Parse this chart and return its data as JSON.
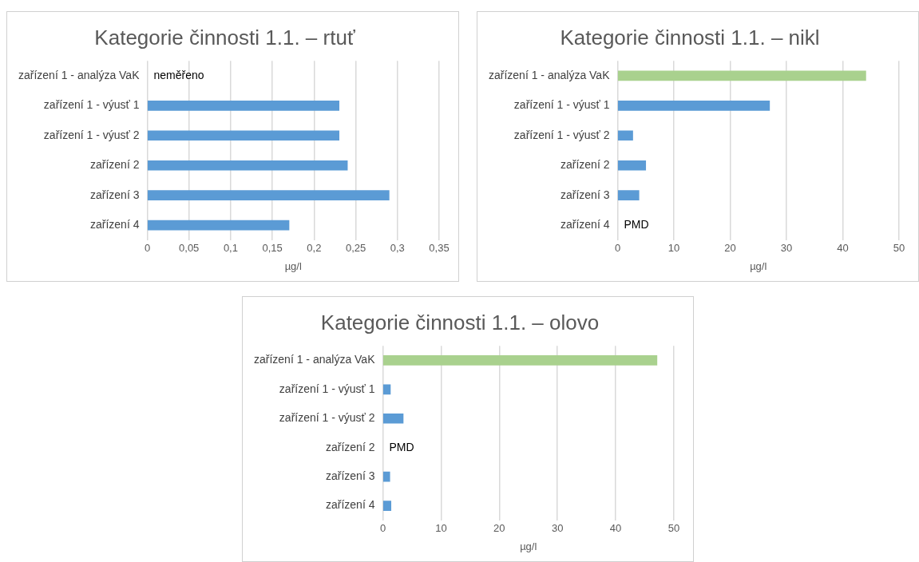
{
  "chart_data": [
    {
      "type": "bar",
      "orientation": "horizontal",
      "title": "Kategorie činnosti 1.1. – rtuť",
      "xlabel": "µg/l",
      "categories": [
        "zařízení 1 - analýza VaK",
        "zařízení 1 - výusť 1",
        "zařízení 1 - výusť 2",
        "zařízení 2",
        "zařízení 3",
        "zařízení 4"
      ],
      "values": [
        null,
        0.23,
        0.23,
        0.24,
        0.29,
        0.17
      ],
      "colors": [
        "#5b9bd5",
        "#5b9bd5",
        "#5b9bd5",
        "#5b9bd5",
        "#5b9bd5",
        "#5b9bd5"
      ],
      "xlim": [
        0,
        0.35
      ],
      "xticks": [
        0,
        {
          "value": 0.05,
          "label": "0,05"
        },
        {
          "value": 0.1,
          "label": "0,1"
        },
        {
          "value": 0.15,
          "label": "0,15"
        },
        {
          "value": 0.2,
          "label": "0,2"
        },
        {
          "value": 0.25,
          "label": "0,25"
        },
        {
          "value": 0.3,
          "label": "0,3"
        },
        {
          "value": 0.35,
          "label": "0,35"
        }
      ],
      "grid": "x",
      "value_labels": [
        "neměřeno",
        null,
        null,
        null,
        null,
        null
      ]
    },
    {
      "type": "bar",
      "orientation": "horizontal",
      "title": "Kategorie činnosti 1.1. – nikl",
      "xlabel": "µg/l",
      "categories": [
        "zařízení 1 - analýza VaK",
        "zařízení 1 - výusť 1",
        "zařízení 1 - výusť 2",
        "zařízení 2",
        "zařízení 3",
        "zařízení 4"
      ],
      "values": [
        44.1,
        27,
        2.7,
        5,
        3.8,
        null
      ],
      "colors": [
        "#a9d18e",
        "#5b9bd5",
        "#5b9bd5",
        "#5b9bd5",
        "#5b9bd5",
        "#5b9bd5"
      ],
      "xlim": [
        0,
        50
      ],
      "xticks": [
        0,
        10,
        20,
        30,
        40,
        50
      ],
      "grid": "x",
      "value_labels": [
        null,
        null,
        null,
        null,
        null,
        "PMD"
      ]
    },
    {
      "type": "bar",
      "orientation": "horizontal",
      "title": "Kategorie činnosti 1.1. – olovo",
      "xlabel": "µg/l",
      "categories": [
        "zařízení 1 - analýza VaK",
        "zařízení 1 - výusť 1",
        "zařízení 1 - výusť 2",
        "zařízení 2",
        "zařízení 3",
        "zařízení 4"
      ],
      "values": [
        47.1,
        1.3,
        3.5,
        null,
        1.2,
        1.4
      ],
      "colors": [
        "#a9d18e",
        "#5b9bd5",
        "#5b9bd5",
        "#5b9bd5",
        "#5b9bd5",
        "#5b9bd5"
      ],
      "xlim": [
        0,
        50
      ],
      "xticks": [
        0,
        10,
        20,
        30,
        40,
        50
      ],
      "grid": "x",
      "value_labels": [
        null,
        null,
        null,
        "PMD",
        null,
        null
      ]
    }
  ]
}
